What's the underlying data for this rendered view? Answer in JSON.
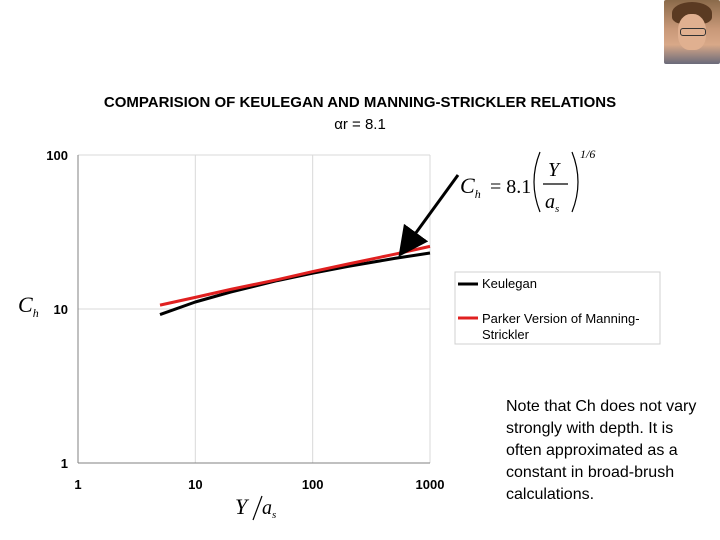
{
  "header": {
    "title": "COMPARISION OF KEULEGAN AND MANNING-STRICKLER RELATIONS",
    "subtitle": "αr = 8.1"
  },
  "note": "Note that Ch does not vary strongly with depth. It is often approximated as a constant in broad-brush calculations.",
  "equation": {
    "lhs": "Ch",
    "coef": "= 8.1",
    "num": "Y",
    "den": "as",
    "exp": "1/6"
  },
  "chart_data": {
    "type": "line",
    "title": "COMPARISION OF KEULEGAN AND MANNING-STRICKLER RELATIONS",
    "subtitle": "αr = 8.1",
    "xlabel": "Y/as",
    "ylabel": "Ch",
    "xscale": "log",
    "yscale": "log",
    "xlim": [
      1,
      1000
    ],
    "ylim": [
      1,
      100
    ],
    "xticks": [
      "1",
      "10",
      "100",
      "1000"
    ],
    "yticks": [
      "1",
      "10",
      "100"
    ],
    "grid": true,
    "legend_position": "right",
    "series": [
      {
        "name": "Keulegan",
        "color": "#000000",
        "x": [
          5,
          10,
          20,
          50,
          100,
          200,
          500,
          1000
        ],
        "y": [
          9.2,
          11.1,
          12.9,
          15.3,
          17.1,
          18.9,
          21.3,
          23.1
        ]
      },
      {
        "name": "Parker Version of Manning-Strickler",
        "color": "#e02020",
        "x": [
          5,
          10,
          20,
          50,
          100,
          200,
          500,
          1000
        ],
        "y": [
          10.6,
          11.9,
          13.4,
          15.5,
          17.5,
          19.6,
          22.7,
          25.5
        ]
      }
    ]
  }
}
